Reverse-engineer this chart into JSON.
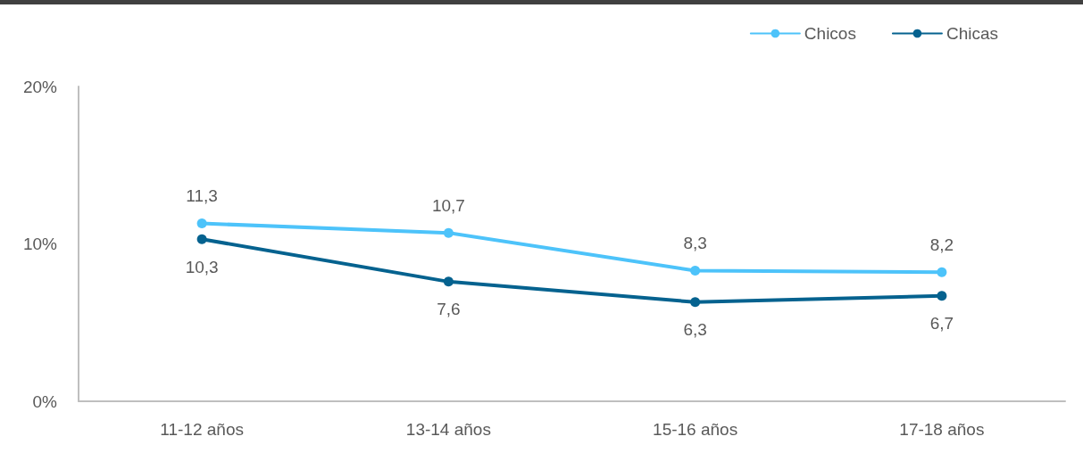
{
  "chart_data": {
    "type": "line",
    "categories": [
      "11-12 años",
      "13-14 años",
      "15-16 años",
      "17-18 años"
    ],
    "series": [
      {
        "name": "Chicos",
        "color": "#4dc3fa",
        "values": [
          11.3,
          10.7,
          8.3,
          8.2
        ],
        "value_labels": [
          "11,3",
          "10,7",
          "8,3",
          "8,2"
        ]
      },
      {
        "name": "Chicas",
        "color": "#05628f",
        "values": [
          10.3,
          7.6,
          6.3,
          6.7
        ],
        "value_labels": [
          "10,3",
          "7,6",
          "6,3",
          "6,7"
        ]
      }
    ],
    "ylim": [
      0,
      20
    ],
    "yticks": [
      {
        "value": 0,
        "label": "0%"
      },
      {
        "value": 10,
        "label": "10%"
      },
      {
        "value": 20,
        "label": "20%"
      }
    ],
    "grid": false,
    "legend": "top right",
    "marker": "circle",
    "line_style": "solid"
  }
}
